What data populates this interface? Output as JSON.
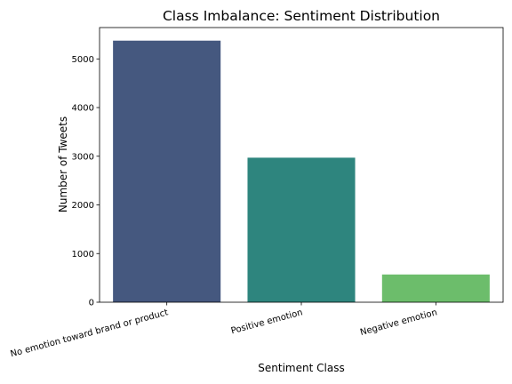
{
  "chart_data": {
    "type": "bar",
    "title": "Class Imbalance: Sentiment Distribution",
    "xlabel": "Sentiment Class",
    "ylabel": "Number of Tweets",
    "categories": [
      "No emotion toward brand or product",
      "Positive emotion",
      "Negative emotion"
    ],
    "values": [
      5375,
      2970,
      570
    ],
    "colors": [
      "#45587f",
      "#2e857e",
      "#6cbd6b"
    ],
    "ylim": [
      0,
      5644
    ],
    "yticks": [
      0,
      1000,
      2000,
      3000,
      4000,
      5000
    ],
    "ytick_labels": [
      "0",
      "1000",
      "2000",
      "3000",
      "4000",
      "5000"
    ],
    "grid": false,
    "legend": "none"
  }
}
